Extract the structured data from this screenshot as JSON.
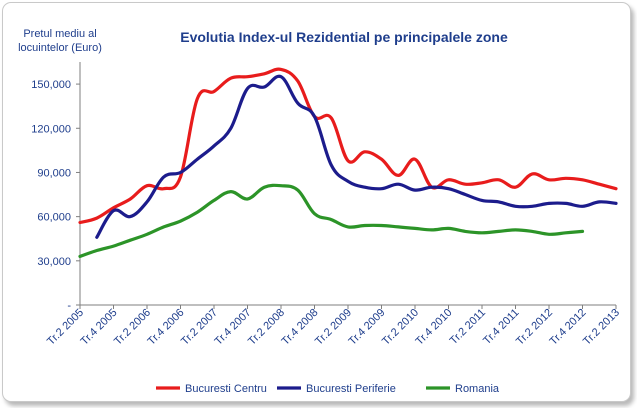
{
  "chart_data": {
    "type": "line",
    "title": "Evolutia Index-ul Rezidential pe principalele zone",
    "ylabel_lines": [
      "Pretul mediu al",
      "locuintelor (Euro)"
    ],
    "xlabel": "",
    "ylim": [
      0,
      165000
    ],
    "y_ticks": [
      0,
      30000,
      60000,
      90000,
      120000,
      150000
    ],
    "y_tick_labels": [
      "-",
      "30,000",
      "60,000",
      "90,000",
      "120,000",
      "150,000"
    ],
    "x_range": [
      0,
      32
    ],
    "x_tick_positions": [
      0,
      2,
      4,
      6,
      8,
      10,
      12,
      14,
      16,
      18,
      20,
      22,
      24,
      26,
      28,
      30,
      32
    ],
    "x_tick_labels": [
      "Tr.2 2005",
      "Tr.4 2005",
      "Tr.2 2006",
      "Tr.4 2006",
      "Tr.2 2007",
      "Tr.4 2007",
      "Tr.2 2008",
      "Tr.4 2008",
      "Tr.2 2009",
      "Tr.4 2009",
      "Tr.2 2010",
      "Tr.4 2010",
      "Tr.2 2011",
      "Tr.4 2011",
      "Tr.2 2012",
      "Tr.4 2012",
      "Tr.2 2013"
    ],
    "grid": false,
    "legend_position": "bottom",
    "series": [
      {
        "name": "Bucuresti Centru",
        "color": "#e81c1c",
        "points": [
          [
            0,
            56000
          ],
          [
            1,
            59000
          ],
          [
            2,
            66000
          ],
          [
            3,
            72000
          ],
          [
            4,
            81000
          ],
          [
            5,
            79000
          ],
          [
            6,
            87000
          ],
          [
            7,
            140000
          ],
          [
            8,
            145000
          ],
          [
            9,
            154000
          ],
          [
            10,
            155000
          ],
          [
            11,
            157000
          ],
          [
            12,
            160000
          ],
          [
            13,
            152000
          ],
          [
            14,
            128000
          ],
          [
            15,
            127000
          ],
          [
            16,
            98000
          ],
          [
            17,
            104000
          ],
          [
            18,
            99000
          ],
          [
            19,
            88000
          ],
          [
            20,
            99000
          ],
          [
            21,
            80000
          ],
          [
            22,
            85000
          ],
          [
            23,
            82000
          ],
          [
            24,
            83000
          ],
          [
            25,
            85000
          ],
          [
            26,
            80000
          ],
          [
            27,
            89000
          ],
          [
            28,
            85000
          ],
          [
            29,
            86000
          ],
          [
            30,
            85000
          ],
          [
            31,
            82000
          ],
          [
            32,
            79000
          ]
        ]
      },
      {
        "name": "Bucuresti Periferie",
        "color": "#1c1c8c",
        "points": [
          [
            1,
            46000
          ],
          [
            2,
            64000
          ],
          [
            3,
            60000
          ],
          [
            4,
            70000
          ],
          [
            5,
            87000
          ],
          [
            6,
            90000
          ],
          [
            7,
            99000
          ],
          [
            8,
            108000
          ],
          [
            9,
            120000
          ],
          [
            10,
            147000
          ],
          [
            11,
            148000
          ],
          [
            12,
            155000
          ],
          [
            13,
            137000
          ],
          [
            14,
            128000
          ],
          [
            15,
            95000
          ],
          [
            16,
            84000
          ],
          [
            17,
            80000
          ],
          [
            18,
            79000
          ],
          [
            19,
            82000
          ],
          [
            20,
            78000
          ],
          [
            21,
            80000
          ],
          [
            22,
            79000
          ],
          [
            23,
            75000
          ],
          [
            24,
            71000
          ],
          [
            25,
            70000
          ],
          [
            26,
            67000
          ],
          [
            27,
            67000
          ],
          [
            28,
            69000
          ],
          [
            29,
            69000
          ],
          [
            30,
            67000
          ],
          [
            31,
            70000
          ],
          [
            32,
            69000
          ]
        ]
      },
      {
        "name": "Romania",
        "color": "#2c9428",
        "points": [
          [
            0,
            33000
          ],
          [
            1,
            37000
          ],
          [
            2,
            40000
          ],
          [
            3,
            44000
          ],
          [
            4,
            48000
          ],
          [
            5,
            53000
          ],
          [
            6,
            57000
          ],
          [
            7,
            63000
          ],
          [
            8,
            71000
          ],
          [
            9,
            77000
          ],
          [
            10,
            72000
          ],
          [
            11,
            80000
          ],
          [
            12,
            81000
          ],
          [
            13,
            78000
          ],
          [
            14,
            62000
          ],
          [
            15,
            58000
          ],
          [
            16,
            53000
          ],
          [
            17,
            54000
          ],
          [
            18,
            54000
          ],
          [
            19,
            53000
          ],
          [
            20,
            52000
          ],
          [
            21,
            51000
          ],
          [
            22,
            52000
          ],
          [
            23,
            50000
          ],
          [
            24,
            49000
          ],
          [
            25,
            50000
          ],
          [
            26,
            51000
          ],
          [
            27,
            50000
          ],
          [
            28,
            48000
          ],
          [
            29,
            49000
          ],
          [
            30,
            50000
          ]
        ]
      }
    ]
  }
}
